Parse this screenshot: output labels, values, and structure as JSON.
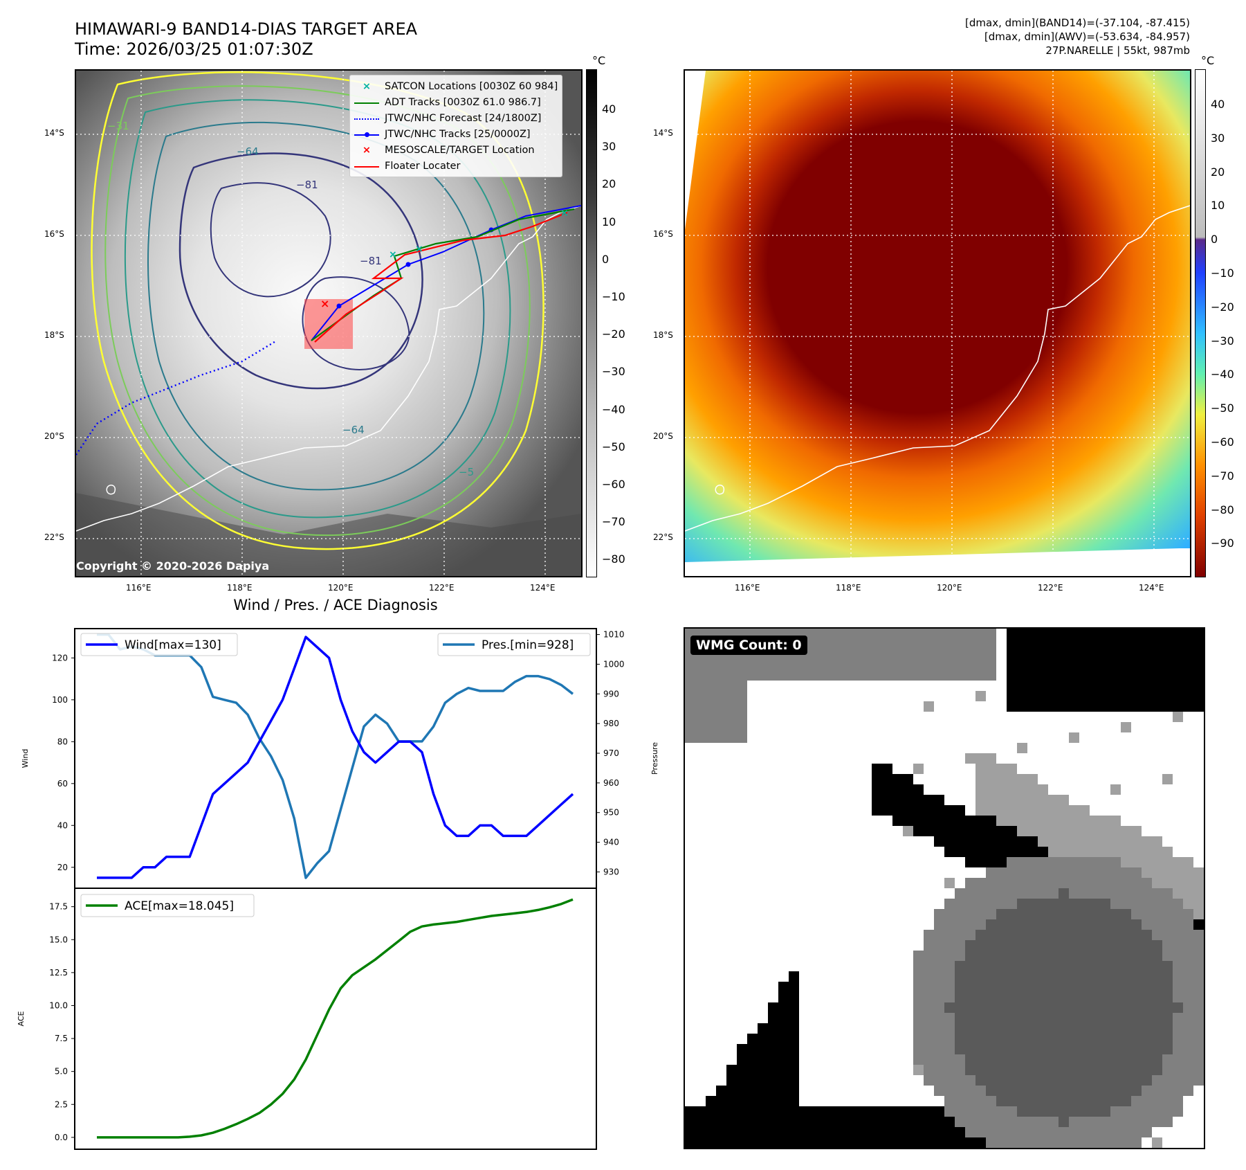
{
  "header": {
    "title_line1": "HIMAWARI-9 BAND14-DIAS TARGET AREA",
    "title_line2": "Time: 2026/03/25 01:07:30Z",
    "info_line1": "[dmax, dmin](BAND14)=(-37.104, -87.415)",
    "info_line2": "[dmax, dmin](AWV)=(-53.634, -84.957)",
    "info_line3": "27P.NARELLE | 55kt, 987mb"
  },
  "maps": {
    "lat_labels": [
      "14°S",
      "16°S",
      "18°S",
      "20°S",
      "22°S"
    ],
    "lon_labels": [
      "116°E",
      "118°E",
      "120°E",
      "122°E",
      "124°E"
    ],
    "colorbar_unit": "°C",
    "gray_colorbar_ticks": [
      "40",
      "30",
      "20",
      "10",
      "0",
      "−10",
      "−20",
      "−30",
      "−40",
      "−50",
      "−60",
      "−70",
      "−80"
    ],
    "color_colorbar_ticks": [
      "40",
      "30",
      "20",
      "10",
      "0",
      "−10",
      "−20",
      "−30",
      "−40",
      "−50",
      "−60",
      "−70",
      "−80",
      "−90"
    ],
    "contour_labels": [
      "−64",
      "−64",
      "−81",
      "−81",
      "−31",
      "−5"
    ],
    "copyright": "Copyright © 2020-2026 Dapiya",
    "legend": [
      {
        "label": "SATCON Locations [0030Z 60 984]",
        "color": "#00b3a0",
        "style": "x"
      },
      {
        "label": "ADT Tracks [0030Z 61.0 986.7]",
        "color": "#008000",
        "style": "line"
      },
      {
        "label": "JTWC/NHC Forecast [24/1800Z]",
        "color": "#0000ff",
        "style": "dotted"
      },
      {
        "label": "JTWC/NHC Tracks [25/0000Z]",
        "color": "#0000ff",
        "style": "line-dot"
      },
      {
        "label": "MESOSCALE/TARGET Location",
        "color": "#ff0000",
        "style": "x"
      },
      {
        "label": "Floater Locater",
        "color": "#ff0000",
        "style": "line"
      }
    ]
  },
  "wmg": {
    "label": "WMG Count: 0"
  },
  "chart_data": [
    {
      "type": "line",
      "title": "Wind / Pres. / ACE Diagnosis",
      "ylabel": "Wind",
      "y2label": "Pressure",
      "ylim": [
        10,
        134
      ],
      "y2lim": [
        924.5,
        1012
      ],
      "yticks": [
        20,
        40,
        60,
        80,
        100,
        120
      ],
      "y2ticks": [
        930,
        940,
        950,
        960,
        970,
        980,
        990,
        1000,
        1010
      ],
      "series": [
        {
          "name": "Wind[max=130]",
          "axis": "left",
          "color": "#0000ff",
          "values": [
            15,
            15,
            15,
            15,
            20,
            20,
            25,
            25,
            25,
            40,
            55,
            60,
            65,
            70,
            80,
            90,
            100,
            115,
            130,
            125,
            120,
            100,
            85,
            75,
            70,
            75,
            80,
            80,
            75,
            55,
            40,
            35,
            35,
            40,
            40,
            35,
            35,
            35,
            40,
            45,
            50,
            55
          ]
        },
        {
          "name": "Pres.[min=928]",
          "axis": "right",
          "color": "#1f77b4",
          "values": [
            1010,
            1010,
            1005,
            1006,
            1005,
            1003,
            1003,
            1003,
            1003,
            999,
            989,
            988,
            987,
            983,
            975,
            969,
            961,
            948,
            928,
            933,
            937,
            951,
            965,
            979,
            983,
            980,
            974,
            974,
            974,
            979,
            987,
            990,
            992,
            991,
            991,
            991,
            994,
            996,
            996,
            995,
            993,
            990
          ]
        }
      ]
    },
    {
      "type": "line",
      "ylabel": "ACE",
      "ylim": [
        -0.9,
        18.9
      ],
      "yticks": [
        0.0,
        2.5,
        5.0,
        7.5,
        10.0,
        12.5,
        15.0,
        17.5
      ],
      "series": [
        {
          "name": "ACE[max=18.045]",
          "color": "#008000",
          "values": [
            0,
            0,
            0,
            0,
            0,
            0,
            0,
            0,
            0.05,
            0.15,
            0.35,
            0.65,
            1.0,
            1.4,
            1.85,
            2.5,
            3.3,
            4.4,
            5.9,
            7.8,
            9.7,
            11.3,
            12.3,
            12.9,
            13.5,
            14.2,
            14.9,
            15.6,
            16.0,
            16.15,
            16.25,
            16.35,
            16.5,
            16.65,
            16.8,
            16.9,
            17.0,
            17.1,
            17.25,
            17.45,
            17.7,
            18.045
          ]
        }
      ]
    }
  ],
  "colors": {
    "wind": "#0000ff",
    "pressure": "#1f77b4",
    "ace": "#008000"
  }
}
